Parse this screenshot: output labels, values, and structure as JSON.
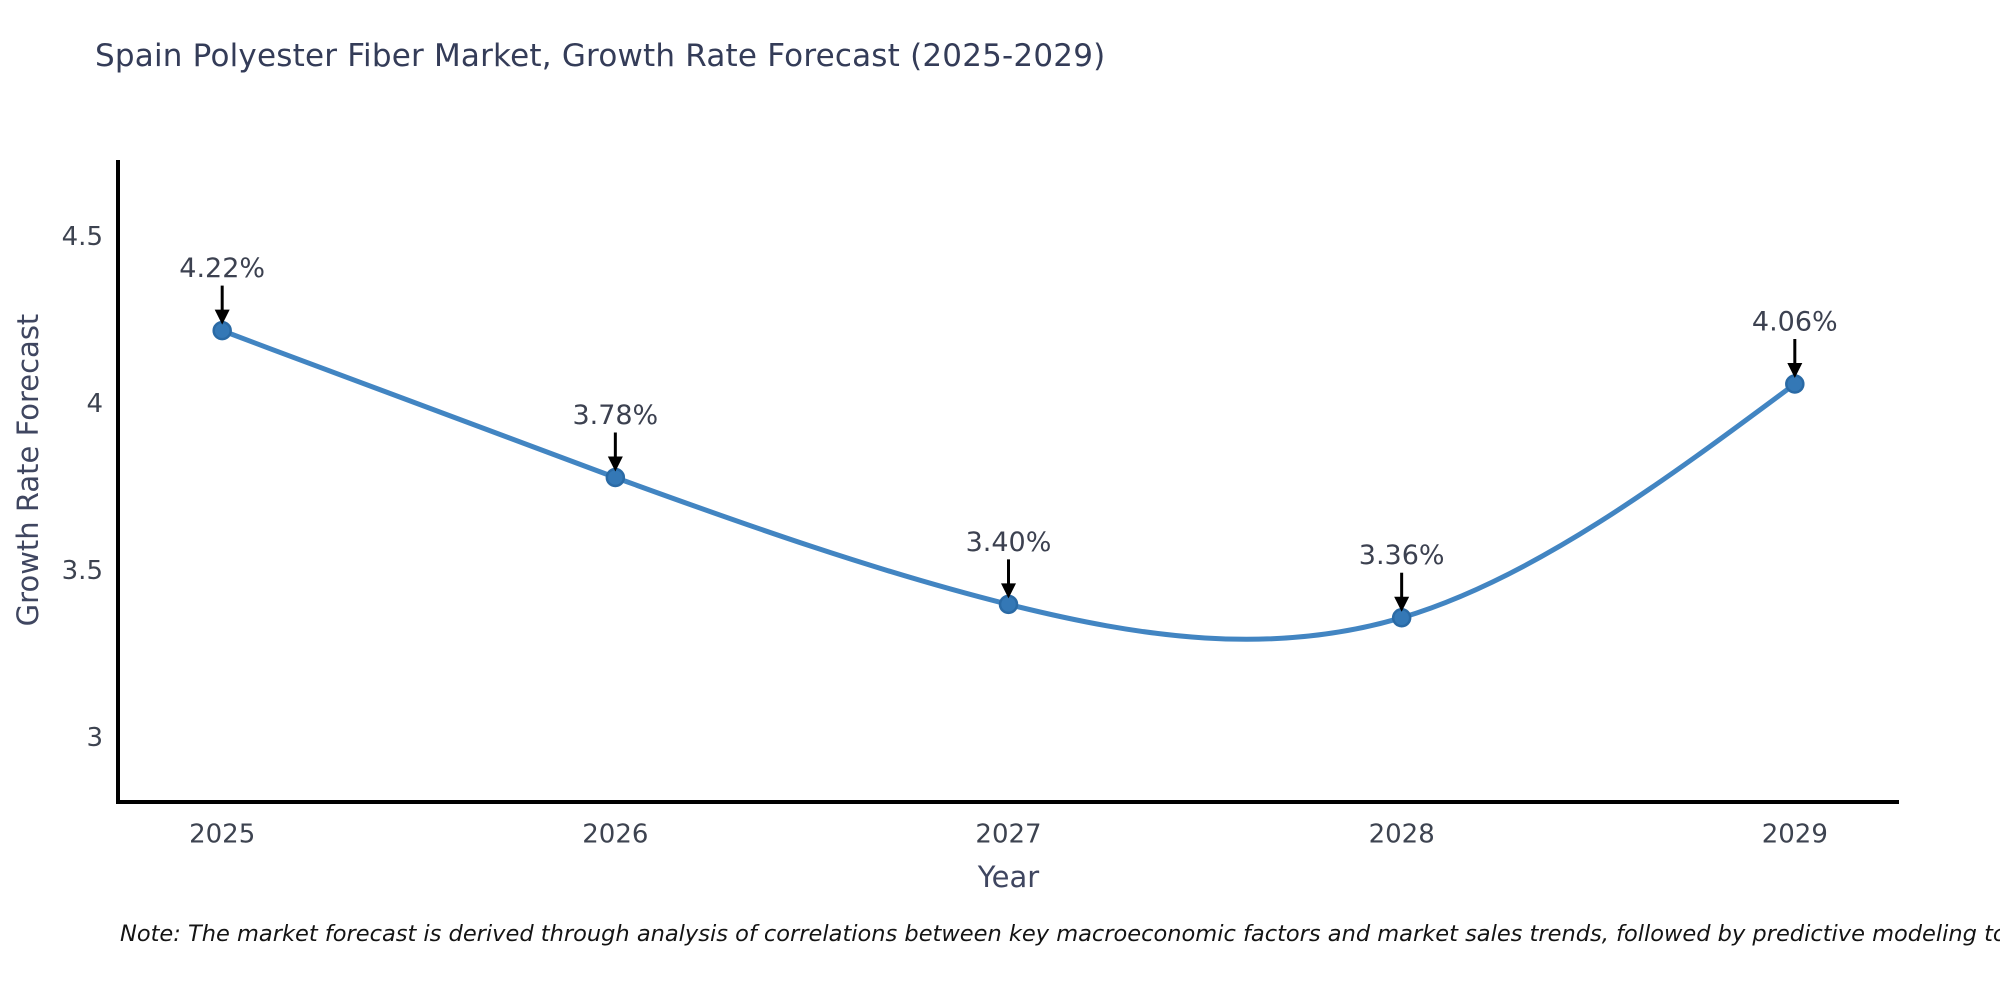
{
  "chart_data": {
    "type": "line",
    "title": "Spain Polyester Fiber Market, Growth Rate Forecast (2025-2029)",
    "xlabel": "Year",
    "ylabel": "Growth Rate Forecast",
    "categories": [
      "2025",
      "2026",
      "2027",
      "2028",
      "2029"
    ],
    "x": [
      2025,
      2026,
      2027,
      2028,
      2029
    ],
    "series": [
      {
        "name": "Growth Rate Forecast",
        "values": [
          4.22,
          3.78,
          3.4,
          3.36,
          4.06
        ]
      }
    ],
    "point_labels": [
      "4.22%",
      "3.78%",
      "3.40%",
      "3.36%",
      "4.06%"
    ],
    "yticks": [
      3,
      3.5,
      4,
      4.5
    ],
    "ytick_labels": [
      "3",
      "3.5",
      "4",
      "4.5"
    ],
    "xlim": [
      2024.735,
      2029.265
    ],
    "ylim": [
      2.808,
      4.731
    ],
    "grid": false,
    "legend": "none",
    "line_shape": "spline",
    "marker": "circle",
    "annotation_arrows": true
  },
  "note": "Note: The market forecast is derived through analysis of correlations between key macroeconomic factors and market sales trends, followed by predictive modeling to project future sales",
  "colors": {
    "background": "#ffffff",
    "line": "#4285c2",
    "marker_fill": "#3478b6",
    "marker_edge": "#2a6aa5",
    "axis": "#000000",
    "arrow": "#000000",
    "title_text": "#343c58",
    "axis_label_text": "#3f4660",
    "tick_text": "#3d4350",
    "annotation_text": "#3c4150",
    "note_text": "#141414"
  }
}
